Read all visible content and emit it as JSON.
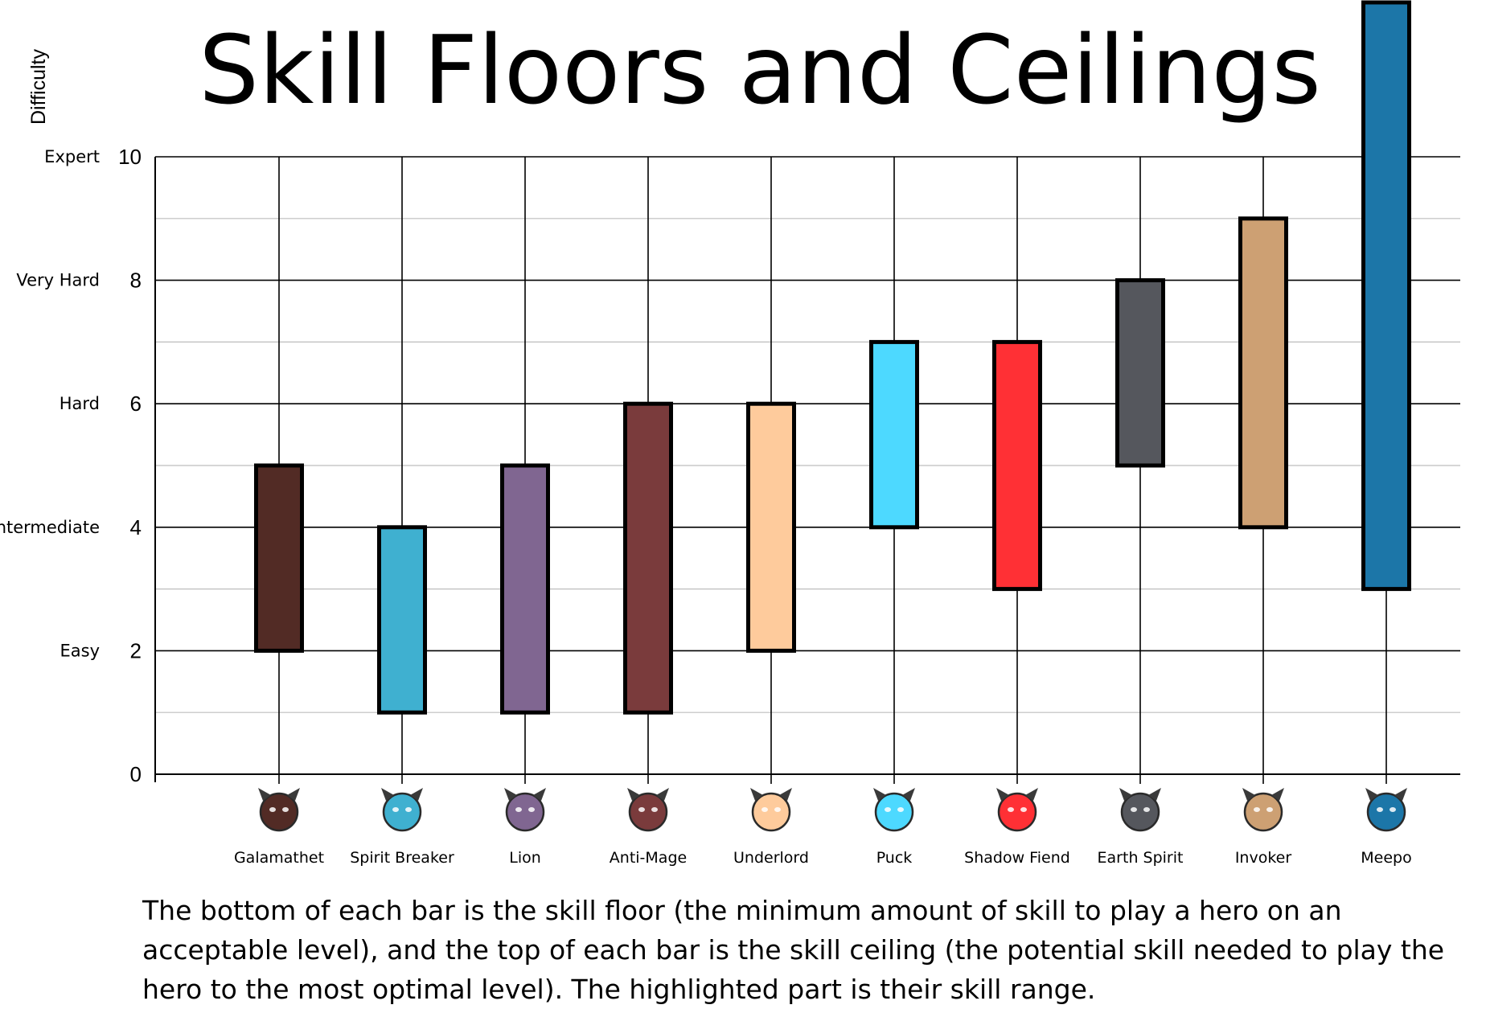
{
  "chart_data": {
    "type": "floating-bar",
    "title": "Skill Floors and Ceilings",
    "ylabel": "Difficulty",
    "ylim": [
      0,
      10
    ],
    "yticks": [
      0,
      2,
      4,
      6,
      8,
      10
    ],
    "level_labels": [
      {
        "value": 2,
        "label": "Easy"
      },
      {
        "value": 4,
        "label": "Intermediate"
      },
      {
        "value": 6,
        "label": "Hard"
      },
      {
        "value": 8,
        "label": "Very Hard"
      },
      {
        "value": 10,
        "label": "Expert"
      }
    ],
    "categories": [
      "Galamathet",
      "Spirit Breaker",
      "Lion",
      "Anti-Mage",
      "Underlord",
      "Puck",
      "Shadow Fiend",
      "Earth Spirit",
      "Invoker",
      "Meepo"
    ],
    "series": [
      {
        "floor": [
          2,
          1,
          1,
          1,
          2,
          4,
          3,
          5,
          4,
          3
        ],
        "ceiling": [
          5,
          4,
          5,
          6,
          6,
          7,
          7,
          8,
          9,
          12.5
        ],
        "colors": [
          "#522b25",
          "#3fb0d0",
          "#806691",
          "#7a3b3c",
          "#fecb9c",
          "#4dd9ff",
          "#ff3035",
          "#55575d",
          "#cda073",
          "#1c76a8"
        ]
      }
    ],
    "grid": true,
    "caption": "The bottom of each bar is the skill floor (the minimum amount of skill to play a hero on an acceptable level), and the top of each bar is the skill ceiling (the potential skill needed to play the hero to the most optimal level). The highlighted part is their skill range."
  }
}
